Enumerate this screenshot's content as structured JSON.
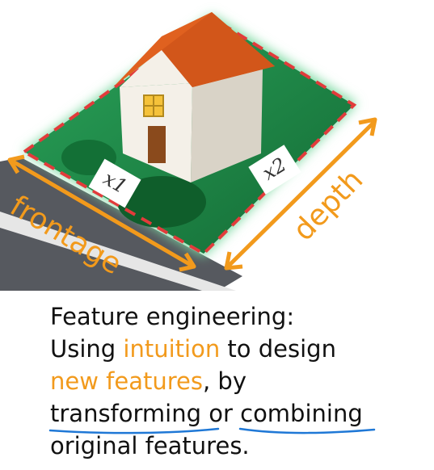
{
  "colors": {
    "accent": "#f29a1c",
    "grass": "#1f8f4a",
    "grass_glow": "#6bd392",
    "property_line": "#e23b3b",
    "roof": "#e0611f",
    "wall": "#f4f0e8",
    "road": "#555860",
    "underline": "#1f78d6",
    "text": "#111111"
  },
  "illustration": {
    "label_x1": "x1",
    "label_x2": "x2",
    "frontage_label": "frontage",
    "depth_label": "depth"
  },
  "caption": {
    "line1": "Feature engineering:",
    "line2_pre": "Using ",
    "line2_accent": "intuition",
    "line2_post": " to design",
    "line3_accent": "new features",
    "line3_post": ", by",
    "line4_word1": "transforming",
    "line4_mid": " or ",
    "line4_word2": "combining",
    "line5": "original features."
  }
}
